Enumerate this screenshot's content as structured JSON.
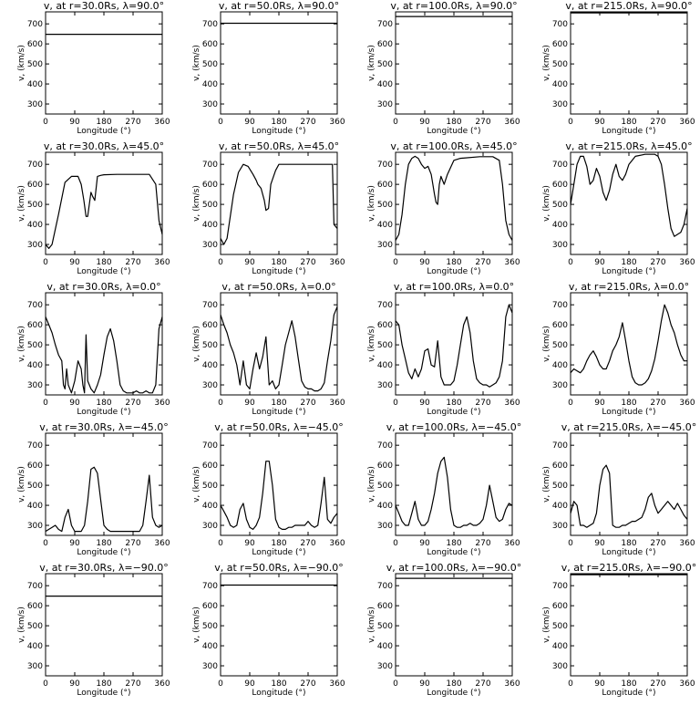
{
  "chart_data": [
    {
      "type": "line",
      "title": "v, at r=30.0Rs, λ=90.0°",
      "xlabel": "Longitude (°)",
      "ylabel": "v, (km/s)",
      "xlim": [
        0,
        360
      ],
      "ylim": [
        250,
        760
      ],
      "x": [
        0,
        360
      ],
      "values": [
        648,
        648
      ]
    },
    {
      "type": "line",
      "title": "v, at r=50.0Rs, λ=90.0°",
      "xlabel": "Longitude (°)",
      "ylabel": "v, (km/s)",
      "xlim": [
        0,
        360
      ],
      "ylim": [
        250,
        760
      ],
      "x": [
        0,
        360
      ],
      "values": [
        703,
        703
      ]
    },
    {
      "type": "line",
      "title": "v, at r=100.0Rs, λ=90.0°",
      "xlabel": "Longitude (°)",
      "ylabel": "v, (km/s)",
      "xlim": [
        0,
        360
      ],
      "ylim": [
        250,
        760
      ],
      "x": [
        0,
        360
      ],
      "values": [
        737,
        737
      ]
    },
    {
      "type": "line",
      "title": "v, at r=215.0Rs, λ=90.0°",
      "xlabel": "Longitude (°)",
      "ylabel": "v, (km/s)",
      "xlim": [
        0,
        360
      ],
      "ylim": [
        250,
        760
      ],
      "x": [
        0,
        360
      ],
      "values": [
        755,
        755
      ]
    },
    {
      "type": "line",
      "title": "v, at r=30.0Rs, λ=45.0°",
      "xlabel": "Longitude (°)",
      "ylabel": "v, (km/s)",
      "xlim": [
        0,
        360
      ],
      "ylim": [
        250,
        760
      ],
      "x": [
        0,
        10,
        20,
        40,
        60,
        80,
        100,
        110,
        118,
        125,
        130,
        135,
        140,
        145,
        152,
        160,
        170,
        180,
        220,
        270,
        300,
        320,
        340,
        350,
        360
      ],
      "values": [
        300,
        280,
        300,
        450,
        610,
        640,
        640,
        600,
        520,
        440,
        440,
        500,
        560,
        540,
        520,
        640,
        645,
        648,
        650,
        650,
        650,
        650,
        600,
        420,
        350
      ]
    },
    {
      "type": "line",
      "title": "v, at r=50.0Rs, λ=45.0°",
      "xlabel": "Longitude (°)",
      "ylabel": "v, (km/s)",
      "xlim": [
        0,
        360
      ],
      "ylim": [
        250,
        760
      ],
      "x": [
        0,
        10,
        20,
        40,
        55,
        70,
        85,
        100,
        110,
        115,
        125,
        135,
        140,
        148,
        155,
        170,
        180,
        200,
        270,
        310,
        330,
        345,
        350,
        360
      ],
      "values": [
        330,
        300,
        330,
        550,
        660,
        700,
        690,
        650,
        620,
        600,
        580,
        520,
        470,
        480,
        600,
        670,
        700,
        700,
        700,
        700,
        700,
        700,
        400,
        380
      ]
    },
    {
      "type": "line",
      "title": "v, at r=100.0Rs, λ=45.0°",
      "xlabel": "Longitude (°)",
      "ylabel": "v, (km/s)",
      "xlim": [
        0,
        360
      ],
      "ylim": [
        250,
        760
      ],
      "x": [
        0,
        10,
        20,
        30,
        40,
        50,
        60,
        70,
        80,
        90,
        100,
        110,
        120,
        125,
        130,
        135,
        140,
        150,
        160,
        180,
        200,
        260,
        300,
        320,
        330,
        340,
        350,
        360
      ],
      "values": [
        320,
        350,
        450,
        600,
        700,
        730,
        740,
        730,
        700,
        680,
        690,
        650,
        550,
        510,
        500,
        600,
        640,
        600,
        650,
        720,
        730,
        738,
        738,
        720,
        600,
        420,
        350,
        320
      ]
    },
    {
      "type": "line",
      "title": "v, at r=215.0Rs, λ=45.0°",
      "xlabel": "Longitude (°)",
      "ylabel": "v, (km/s)",
      "xlim": [
        0,
        360
      ],
      "ylim": [
        250,
        760
      ],
      "x": [
        0,
        10,
        20,
        30,
        40,
        50,
        60,
        70,
        80,
        90,
        100,
        110,
        120,
        130,
        140,
        150,
        160,
        170,
        180,
        200,
        230,
        260,
        270,
        280,
        290,
        300,
        310,
        320,
        330,
        340,
        350,
        360
      ],
      "values": [
        500,
        600,
        700,
        740,
        740,
        690,
        600,
        620,
        680,
        640,
        560,
        520,
        570,
        650,
        700,
        640,
        620,
        650,
        700,
        740,
        750,
        750,
        740,
        700,
        600,
        480,
        380,
        340,
        350,
        360,
        400,
        480
      ]
    },
    {
      "type": "line",
      "title": "v, at r=30.0Rs, λ=0.0°",
      "xlabel": "Longitude (°)",
      "ylabel": "v, (km/s)",
      "xlim": [
        0,
        360
      ],
      "ylim": [
        250,
        760
      ],
      "x": [
        0,
        10,
        20,
        30,
        40,
        50,
        55,
        60,
        65,
        70,
        80,
        90,
        100,
        110,
        115,
        120,
        125,
        130,
        135,
        140,
        150,
        160,
        170,
        180,
        190,
        200,
        210,
        220,
        225,
        230,
        240,
        250,
        260,
        270,
        280,
        290,
        300,
        310,
        320,
        330,
        340,
        350,
        360
      ],
      "values": [
        640,
        600,
        560,
        500,
        450,
        420,
        300,
        280,
        380,
        300,
        260,
        320,
        420,
        380,
        300,
        260,
        550,
        320,
        300,
        280,
        260,
        300,
        350,
        450,
        540,
        580,
        520,
        420,
        360,
        300,
        270,
        260,
        260,
        260,
        270,
        260,
        260,
        270,
        260,
        260,
        300,
        580,
        640
      ]
    },
    {
      "type": "line",
      "title": "v, at r=50.0Rs, λ=0.0°",
      "xlabel": "Longitude (°)",
      "ylabel": "v, (km/s)",
      "xlim": [
        0,
        360
      ],
      "ylim": [
        250,
        760
      ],
      "x": [
        0,
        10,
        20,
        30,
        40,
        50,
        60,
        70,
        80,
        90,
        100,
        110,
        120,
        130,
        140,
        150,
        160,
        170,
        180,
        190,
        200,
        210,
        220,
        230,
        240,
        250,
        260,
        270,
        280,
        290,
        300,
        310,
        320,
        330,
        340,
        350,
        360
      ],
      "values": [
        650,
        600,
        560,
        500,
        460,
        400,
        300,
        420,
        300,
        280,
        380,
        460,
        380,
        440,
        540,
        300,
        320,
        280,
        300,
        400,
        500,
        560,
        620,
        540,
        430,
        320,
        290,
        280,
        280,
        270,
        270,
        280,
        310,
        420,
        520,
        650,
        690
      ]
    },
    {
      "type": "line",
      "title": "v, at r=100.0Rs, λ=0.0°",
      "xlabel": "Longitude (°)",
      "ylabel": "v, (km/s)",
      "xlim": [
        0,
        360
      ],
      "ylim": [
        250,
        760
      ],
      "x": [
        0,
        10,
        20,
        30,
        40,
        50,
        60,
        70,
        80,
        90,
        100,
        110,
        120,
        130,
        140,
        150,
        160,
        170,
        180,
        190,
        200,
        210,
        220,
        230,
        240,
        250,
        260,
        270,
        280,
        290,
        300,
        310,
        320,
        330,
        340,
        350,
        360
      ],
      "values": [
        620,
        600,
        500,
        430,
        360,
        330,
        380,
        340,
        380,
        470,
        480,
        400,
        390,
        520,
        340,
        300,
        300,
        300,
        320,
        400,
        500,
        600,
        640,
        560,
        420,
        330,
        310,
        300,
        300,
        290,
        300,
        310,
        340,
        420,
        640,
        700,
        660
      ]
    },
    {
      "type": "line",
      "title": "v, at r=215.0Rs, λ=0.0°",
      "xlabel": "Longitude (°)",
      "ylabel": "v, (km/s)",
      "xlim": [
        0,
        360
      ],
      "ylim": [
        250,
        760
      ],
      "x": [
        0,
        10,
        20,
        30,
        40,
        50,
        60,
        70,
        80,
        90,
        100,
        110,
        120,
        130,
        140,
        150,
        160,
        170,
        180,
        190,
        200,
        210,
        220,
        230,
        240,
        250,
        260,
        270,
        280,
        290,
        300,
        310,
        320,
        330,
        340,
        350,
        360
      ],
      "values": [
        360,
        380,
        370,
        360,
        380,
        420,
        450,
        470,
        440,
        400,
        380,
        380,
        420,
        470,
        500,
        540,
        610,
        520,
        420,
        340,
        310,
        300,
        300,
        310,
        330,
        370,
        430,
        520,
        620,
        700,
        660,
        600,
        560,
        500,
        450,
        420,
        420
      ]
    },
    {
      "type": "line",
      "title": "v, at r=30.0Rs, λ=−45.0°",
      "xlabel": "Longitude (°)",
      "ylabel": "v, (km/s)",
      "xlim": [
        0,
        360
      ],
      "ylim": [
        250,
        760
      ],
      "x": [
        0,
        10,
        20,
        30,
        40,
        50,
        60,
        70,
        80,
        90,
        100,
        110,
        120,
        130,
        140,
        150,
        160,
        170,
        180,
        190,
        200,
        210,
        220,
        230,
        240,
        250,
        260,
        270,
        280,
        290,
        300,
        310,
        320,
        330,
        340,
        350,
        360
      ],
      "values": [
        270,
        280,
        290,
        300,
        280,
        270,
        340,
        380,
        300,
        270,
        270,
        270,
        300,
        420,
        580,
        590,
        560,
        430,
        300,
        280,
        270,
        270,
        270,
        270,
        270,
        270,
        270,
        270,
        270,
        270,
        300,
        420,
        550,
        340,
        300,
        290,
        300
      ]
    },
    {
      "type": "line",
      "title": "v, at r=50.0Rs, λ=−45.0°",
      "xlabel": "Longitude (°)",
      "ylabel": "v, (km/s)",
      "xlim": [
        0,
        360
      ],
      "ylim": [
        250,
        760
      ],
      "x": [
        0,
        10,
        20,
        30,
        40,
        50,
        60,
        70,
        80,
        90,
        100,
        110,
        120,
        130,
        140,
        150,
        160,
        170,
        180,
        190,
        200,
        210,
        220,
        230,
        240,
        250,
        260,
        270,
        280,
        290,
        300,
        310,
        320,
        330,
        340,
        350,
        360
      ],
      "values": [
        400,
        370,
        340,
        300,
        290,
        300,
        380,
        410,
        330,
        290,
        280,
        300,
        340,
        460,
        620,
        620,
        500,
        330,
        290,
        280,
        280,
        290,
        290,
        300,
        300,
        300,
        300,
        320,
        300,
        290,
        300,
        410,
        540,
        330,
        310,
        340,
        360
      ]
    },
    {
      "type": "line",
      "title": "v, at r=100.0Rs, λ=−45.0°",
      "xlabel": "Longitude (°)",
      "ylabel": "v, (km/s)",
      "xlim": [
        0,
        360
      ],
      "ylim": [
        250,
        760
      ],
      "x": [
        0,
        10,
        20,
        30,
        40,
        50,
        60,
        70,
        80,
        90,
        100,
        110,
        120,
        130,
        140,
        150,
        160,
        170,
        180,
        190,
        200,
        210,
        220,
        230,
        240,
        250,
        260,
        270,
        280,
        290,
        300,
        310,
        320,
        330,
        340,
        350,
        360
      ],
      "values": [
        400,
        360,
        320,
        300,
        300,
        360,
        420,
        330,
        300,
        300,
        320,
        380,
        460,
        560,
        620,
        640,
        540,
        380,
        300,
        290,
        290,
        300,
        300,
        310,
        300,
        300,
        310,
        330,
        400,
        500,
        420,
        340,
        320,
        330,
        380,
        410,
        400
      ]
    },
    {
      "type": "line",
      "title": "v, at r=215.0Rs, λ=−45.0°",
      "xlabel": "Longitude (°)",
      "ylabel": "v, (km/s)",
      "xlim": [
        0,
        360
      ],
      "ylim": [
        250,
        760
      ],
      "x": [
        0,
        10,
        20,
        30,
        40,
        50,
        60,
        70,
        80,
        90,
        100,
        110,
        120,
        130,
        140,
        150,
        160,
        170,
        180,
        190,
        200,
        210,
        220,
        230,
        240,
        250,
        260,
        270,
        280,
        290,
        300,
        310,
        320,
        330,
        340,
        350,
        360
      ],
      "values": [
        360,
        420,
        400,
        300,
        300,
        290,
        300,
        310,
        360,
        500,
        580,
        600,
        560,
        300,
        290,
        290,
        300,
        300,
        310,
        320,
        320,
        330,
        340,
        380,
        440,
        460,
        400,
        360,
        380,
        400,
        420,
        400,
        380,
        410,
        380,
        350,
        330
      ]
    },
    {
      "type": "line",
      "title": "v, at r=30.0Rs, λ=−90.0°",
      "xlabel": "Longitude (°)",
      "ylabel": "v, (km/s)",
      "xlim": [
        0,
        360
      ],
      "ylim": [
        250,
        760
      ],
      "x": [
        0,
        360
      ],
      "values": [
        648,
        648
      ]
    },
    {
      "type": "line",
      "title": "v, at r=50.0Rs, λ=−90.0°",
      "xlabel": "Longitude (°)",
      "ylabel": "v, (km/s)",
      "xlim": [
        0,
        360
      ],
      "ylim": [
        250,
        760
      ],
      "x": [
        0,
        360
      ],
      "values": [
        703,
        703
      ]
    },
    {
      "type": "line",
      "title": "v, at r=100.0Rs, λ=−90.0°",
      "xlabel": "Longitude (°)",
      "ylabel": "v, (km/s)",
      "xlim": [
        0,
        360
      ],
      "ylim": [
        250,
        760
      ],
      "x": [
        0,
        360
      ],
      "values": [
        737,
        737
      ]
    },
    {
      "type": "line",
      "title": "v, at r=215.0Rs, λ=−90.0°",
      "xlabel": "Longitude (°)",
      "ylabel": "v, (km/s)",
      "xlim": [
        0,
        360
      ],
      "ylim": [
        250,
        760
      ],
      "x": [
        0,
        360
      ],
      "values": [
        755,
        755
      ]
    }
  ],
  "axes": {
    "xticks": [
      0,
      90,
      180,
      270,
      360
    ],
    "yticks": [
      300,
      400,
      500,
      600,
      700
    ]
  },
  "colors": {
    "line": "#000000",
    "background": "#ffffff"
  }
}
